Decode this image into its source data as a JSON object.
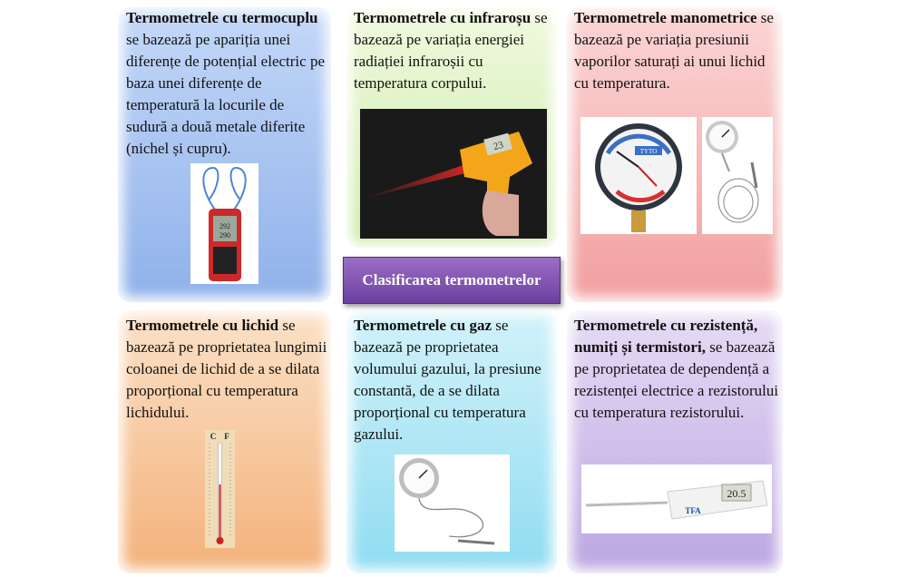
{
  "title": "Clasificarea termometrelor",
  "cards": {
    "thermocouple": {
      "bold": "Termometrele cu termocuplu",
      "text": " se bazează pe apariția unei diferențe de potențial electric pe baza unei diferențe de temperatură la locurile de sudură a două metale diferite (nichel și cupru).",
      "photo_text_1": "292",
      "photo_text_2": "290"
    },
    "infrared": {
      "bold": "Termometrele cu infraroșu",
      "text": " se bazează pe variația energiei radiației infraroșii cu temperatura corpului.",
      "photo_text": "23"
    },
    "manometric": {
      "bold": "Termometrele manometrice",
      "text": " se bazează pe variația presiunii vaporilor saturați ai unui lichid cu temperatura.",
      "photo_text": "TYTO"
    },
    "liquid": {
      "bold": "Termometrele cu lichid",
      "text": " se bazează pe proprietatea lungimii coloanei de lichid de a se dilata proporțional cu temperatura lichidului.",
      "scale_c": "C",
      "scale_f": "F"
    },
    "gas": {
      "bold": "Termometrele cu gaz",
      "text": " se bazează pe proprietatea volumului gazului, la presiune constantă, de a se dilata proporțional cu temperatura gazului."
    },
    "resistance": {
      "bold": "Termometrele cu rezistență, numiți și termistori,",
      "text": " se bazează pe proprietatea de dependență a rezistenței electrice a rezistorului cu temperatura rezistorului.",
      "photo_text": "20.5",
      "brand": "TFA"
    }
  },
  "colors": {
    "blue": "#a9c4f0",
    "green": "#d9f0b8",
    "red": "#f4b4b4",
    "orange": "#f7c99c",
    "cyan": "#a8e4f4",
    "purple": "#cbb7e8",
    "title": "#7b4fb0"
  }
}
